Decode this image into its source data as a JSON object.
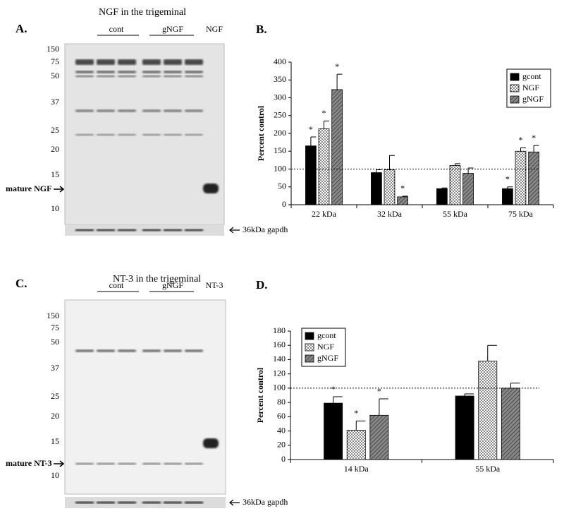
{
  "panels": [
    {
      "label": "A.",
      "title": "NGF in the trigeminal",
      "groups": [
        "cont",
        "gNGF",
        "NGF"
      ],
      "markers": [
        150,
        75,
        50,
        37,
        25,
        20,
        15,
        10
      ],
      "mature": "mature NGF",
      "loading": "36kDa gapdh"
    },
    {
      "label": "C.",
      "title": "NT-3 in the trigeminal",
      "groups": [
        "cont",
        "gNGF",
        "NT-3"
      ],
      "markers": [
        150,
        75,
        50,
        37,
        25,
        20,
        15,
        10
      ],
      "mature": "mature NT-3",
      "loading": "36kDa gapdh"
    }
  ],
  "chart_data": [
    {
      "type": "bar",
      "label": "B.",
      "y_label": "Percent control",
      "categories": [
        "22 kDa",
        "32 kDa",
        "55 kDa",
        "75 kDa"
      ],
      "series": [
        {
          "name": "gcont",
          "color": "#000000",
          "pattern": "solid",
          "values": [
            165,
            90,
            45,
            45
          ],
          "errors": [
            25,
            8,
            2,
            5
          ],
          "labels": [
            "*",
            null,
            null,
            "*"
          ]
        },
        {
          "name": "NGF",
          "color": "#ffffff",
          "pattern": "dots",
          "values": [
            213,
            98,
            110,
            150
          ],
          "errors": [
            22,
            40,
            5,
            10
          ],
          "labels": [
            "*",
            null,
            null,
            "*"
          ]
        },
        {
          "name": "gNGF",
          "color": "#777777",
          "pattern": "hatch",
          "values": [
            323,
            22,
            88,
            148
          ],
          "errors": [
            43,
            2,
            15,
            18
          ],
          "labels": [
            "*",
            "*",
            null,
            "*"
          ]
        }
      ],
      "ylim": [
        0,
        400
      ],
      "yticks": [
        0,
        50,
        100,
        150,
        200,
        250,
        300,
        350,
        400
      ],
      "reference_line": 100,
      "legend": "top-right"
    },
    {
      "type": "bar",
      "label": "D.",
      "y_label": "Percent control",
      "categories": [
        "14 kDa",
        "55 kDa"
      ],
      "series": [
        {
          "name": "gcont",
          "color": "#000000",
          "pattern": "solid",
          "values": [
            79,
            89
          ],
          "errors": [
            9,
            3
          ],
          "labels": [
            "*",
            null
          ]
        },
        {
          "name": "NGF",
          "color": "#ffffff",
          "pattern": "dots",
          "values": [
            41,
            138
          ],
          "errors": [
            13,
            22
          ],
          "labels": [
            "*",
            null
          ]
        },
        {
          "name": "gNGF",
          "color": "#777777",
          "pattern": "hatch",
          "values": [
            62,
            100
          ],
          "errors": [
            23,
            7
          ],
          "labels": [
            "*",
            null
          ]
        }
      ],
      "ylim": [
        0,
        180
      ],
      "yticks": [
        0,
        20,
        40,
        60,
        80,
        100,
        120,
        140,
        160,
        180
      ],
      "reference_line": 100,
      "legend": "top-left"
    }
  ]
}
